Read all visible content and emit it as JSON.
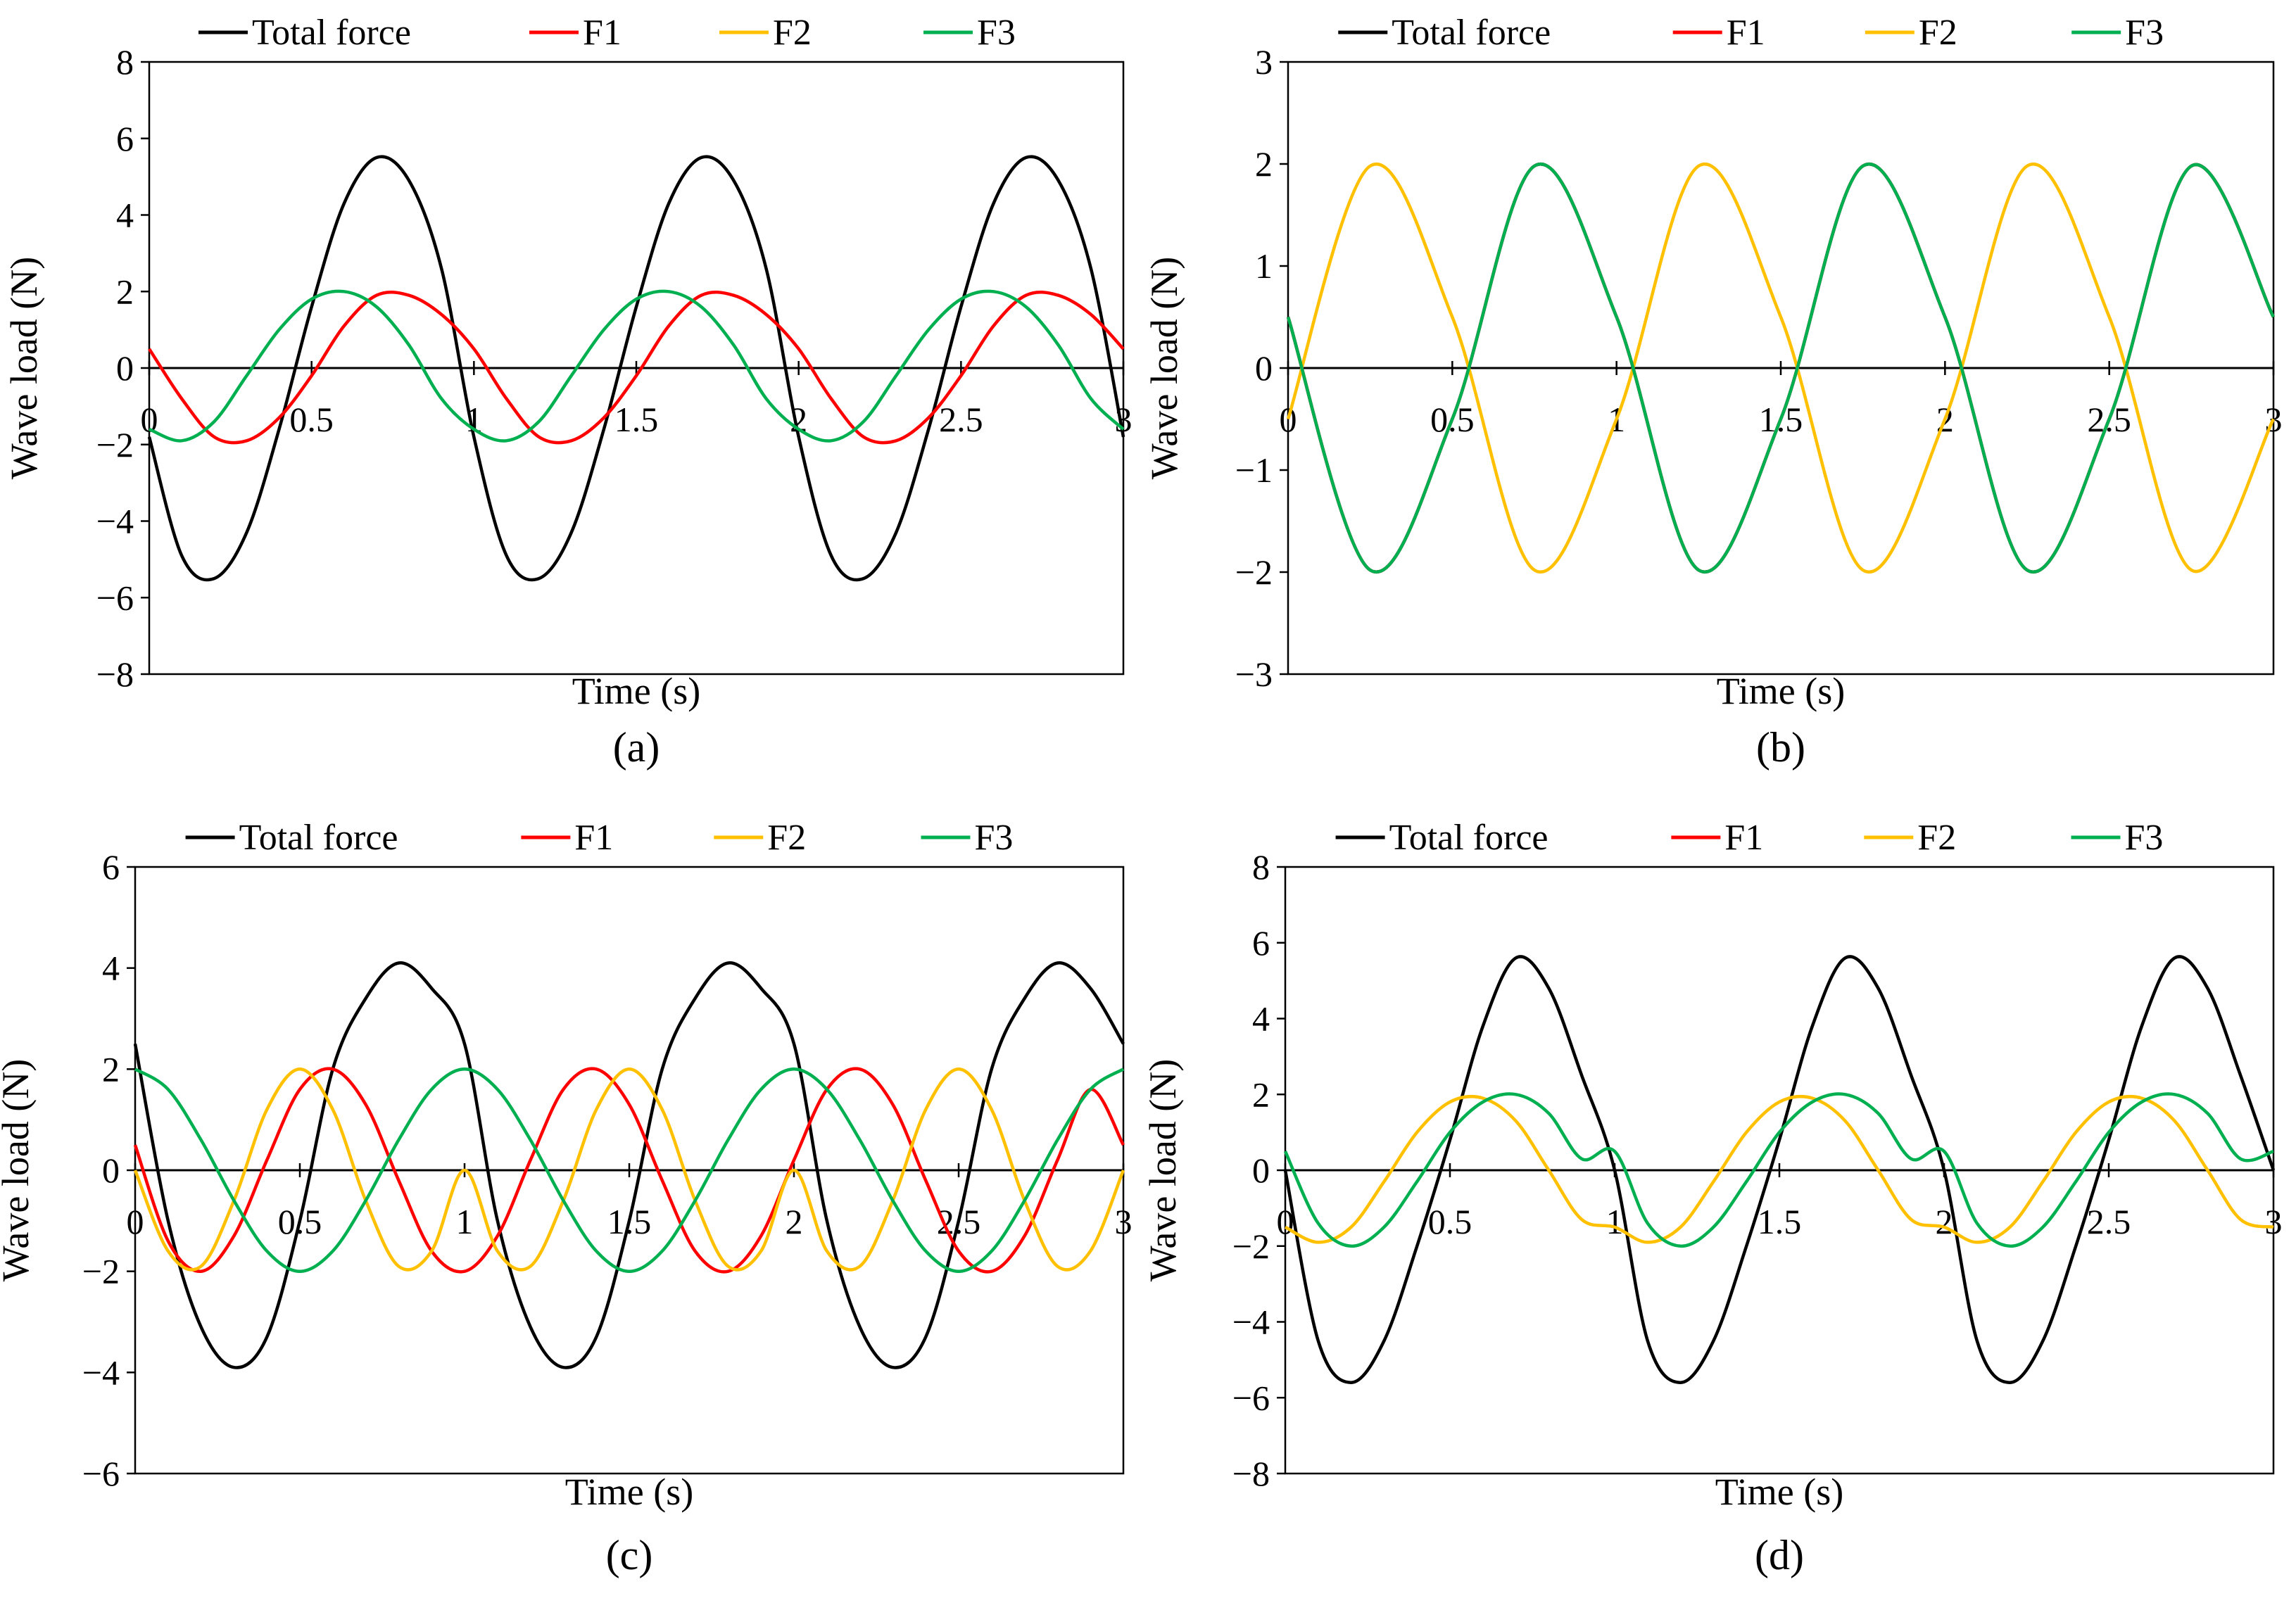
{
  "colors": {
    "total": "#000000",
    "f1": "#ff0000",
    "f2": "#ffc000",
    "f3": "#00b050",
    "axis": "#000000"
  },
  "chart_data": [
    {
      "type": "line",
      "caption": "(a)",
      "xlabel": "Time (s)",
      "ylabel": "Wave load (N)",
      "xlim": [
        0,
        3
      ],
      "ylim": [
        -8,
        8
      ],
      "xticks": [
        0,
        0.5,
        1,
        1.5,
        2,
        2.5,
        3
      ],
      "xtick_labels": [
        "0",
        "0.5",
        "1",
        "1.5",
        "2",
        "2.5",
        "3"
      ],
      "yticks": [
        -8,
        -6,
        -4,
        -2,
        0,
        2,
        4,
        6,
        8
      ],
      "ytick_labels": [
        "−8",
        "−6",
        "−4",
        "−2",
        "0",
        "2",
        "4",
        "6",
        "8"
      ],
      "legend": "top",
      "grid": false,
      "series": [
        {
          "name": "Total force",
          "color_key": "total",
          "x": [
            0,
            0.1,
            0.2,
            0.3,
            0.4,
            0.5,
            0.6,
            0.7,
            0.8,
            0.9,
            1.0,
            1.1,
            1.2,
            1.3,
            1.4,
            1.5,
            1.6,
            1.7,
            1.8,
            1.9,
            2.0,
            2.1,
            2.2,
            2.3,
            2.4,
            2.5,
            2.6,
            2.7,
            2.8,
            2.9,
            3.0
          ],
          "values": [
            -1.8,
            -4.9,
            -5.5,
            -4.3,
            -1.6,
            1.6,
            4.3,
            5.5,
            4.9,
            2.6,
            -1.8,
            -4.9,
            -5.5,
            -4.3,
            -1.6,
            1.6,
            4.3,
            5.5,
            4.9,
            2.6,
            -1.8,
            -4.9,
            -5.5,
            -4.3,
            -1.6,
            1.6,
            4.3,
            5.5,
            4.9,
            2.6,
            -1.8
          ]
        },
        {
          "name": "F1",
          "color_key": "f1",
          "x": [
            0,
            0.1,
            0.2,
            0.3,
            0.4,
            0.5,
            0.6,
            0.7,
            0.8,
            0.9,
            1.0,
            1.1,
            1.2,
            1.3,
            1.4,
            1.5,
            1.6,
            1.7,
            1.8,
            1.9,
            2.0,
            2.1,
            2.2,
            2.3,
            2.4,
            2.5,
            2.6,
            2.7,
            2.8,
            2.9,
            3.0
          ],
          "values": [
            0.5,
            -0.8,
            -1.8,
            -1.9,
            -1.3,
            -0.2,
            1.1,
            1.9,
            1.9,
            1.4,
            0.5,
            -0.8,
            -1.8,
            -1.9,
            -1.3,
            -0.2,
            1.1,
            1.9,
            1.9,
            1.4,
            0.5,
            -0.8,
            -1.8,
            -1.9,
            -1.3,
            -0.2,
            1.1,
            1.9,
            1.9,
            1.4,
            0.5
          ]
        },
        {
          "name": "F2",
          "color_key": "f2",
          "x": [],
          "values": []
        },
        {
          "name": "F3",
          "color_key": "f3",
          "x": [
            0,
            0.1,
            0.2,
            0.3,
            0.4,
            0.5,
            0.6,
            0.7,
            0.8,
            0.9,
            1.0,
            1.1,
            1.2,
            1.3,
            1.4,
            1.5,
            1.6,
            1.7,
            1.8,
            1.9,
            2.0,
            2.1,
            2.2,
            2.3,
            2.4,
            2.5,
            2.6,
            2.7,
            2.8,
            2.9,
            3.0
          ],
          "values": [
            -1.6,
            -1.9,
            -1.4,
            -0.2,
            1.0,
            1.8,
            2.0,
            1.6,
            0.6,
            -0.8,
            -1.6,
            -1.9,
            -1.4,
            -0.2,
            1.0,
            1.8,
            2.0,
            1.6,
            0.6,
            -0.8,
            -1.6,
            -1.9,
            -1.4,
            -0.2,
            1.0,
            1.8,
            2.0,
            1.6,
            0.6,
            -0.8,
            -1.6
          ]
        }
      ]
    },
    {
      "type": "line",
      "caption": "(b)",
      "xlabel": "Time (s)",
      "ylabel": "Wave load (N)",
      "xlim": [
        0,
        3
      ],
      "ylim": [
        -3,
        3
      ],
      "xticks": [
        0,
        0.5,
        1,
        1.5,
        2,
        2.5,
        3
      ],
      "xtick_labels": [
        "0",
        "0.5",
        "1",
        "1.5",
        "2",
        "2.5",
        "3"
      ],
      "yticks": [
        -3,
        -2,
        -1,
        0,
        1,
        2,
        3
      ],
      "ytick_labels": [
        "−3",
        "−2",
        "−1",
        "0",
        "1",
        "2",
        "3"
      ],
      "legend": "top",
      "grid": false,
      "series": [
        {
          "name": "Total force",
          "color_key": "total",
          "x": [
            0,
            0.25,
            0.5,
            0.75,
            1.0,
            1.25,
            1.5,
            1.75,
            2.0,
            2.25,
            2.5,
            2.75,
            3.0
          ],
          "values": [
            0.5,
            -1.98,
            -0.5,
            1.98,
            0.5,
            -1.98,
            -0.5,
            1.98,
            0.5,
            -1.98,
            -0.5,
            1.98,
            0.5
          ]
        },
        {
          "name": "F1",
          "color_key": "f1",
          "x": [
            0,
            0.25,
            0.5,
            0.75,
            1.0,
            1.25,
            1.5,
            1.75,
            2.0,
            2.25,
            2.5,
            2.75,
            3.0
          ],
          "values": [
            0.5,
            -1.98,
            -0.5,
            1.98,
            0.5,
            -1.98,
            -0.5,
            1.98,
            0.5,
            -1.98,
            -0.5,
            1.98,
            0.5
          ]
        },
        {
          "name": "F2",
          "color_key": "f2",
          "x": [
            0,
            0.25,
            0.5,
            0.75,
            1.0,
            1.25,
            1.5,
            1.75,
            2.0,
            2.25,
            2.5,
            2.75,
            3.0
          ],
          "values": [
            -0.5,
            1.98,
            0.5,
            -1.98,
            -0.5,
            1.98,
            0.5,
            -1.98,
            -0.5,
            1.98,
            0.5,
            -1.98,
            -0.5
          ]
        },
        {
          "name": "F3",
          "color_key": "f3",
          "x": [
            0,
            0.25,
            0.5,
            0.75,
            1.0,
            1.25,
            1.5,
            1.75,
            2.0,
            2.25,
            2.5,
            2.75,
            3.0
          ],
          "values": [
            0.5,
            -1.98,
            -0.5,
            1.98,
            0.5,
            -1.98,
            -0.5,
            1.98,
            0.5,
            -1.98,
            -0.5,
            1.98,
            0.5
          ]
        }
      ]
    },
    {
      "type": "line",
      "caption": "(c)",
      "xlabel": "Time (s)",
      "ylabel": "Wave load (N)",
      "xlim": [
        0,
        3
      ],
      "ylim": [
        -6,
        6
      ],
      "xticks": [
        0,
        0.5,
        1,
        1.5,
        2,
        2.5,
        3
      ],
      "xtick_labels": [
        "0",
        "0.5",
        "1",
        "1.5",
        "2",
        "2.5",
        "3"
      ],
      "yticks": [
        -6,
        -4,
        -2,
        0,
        2,
        4,
        6
      ],
      "ytick_labels": [
        "−6",
        "−4",
        "−2",
        "0",
        "2",
        "4",
        "6"
      ],
      "legend": "top",
      "grid": false,
      "series": [
        {
          "name": "Total force",
          "color_key": "total",
          "x": [
            0,
            0.1,
            0.2,
            0.3,
            0.4,
            0.5,
            0.6,
            0.7,
            0.8,
            0.9,
            1.0,
            1.1,
            1.2,
            1.3,
            1.4,
            1.5,
            1.6,
            1.7,
            1.8,
            1.9,
            2.0,
            2.1,
            2.2,
            2.3,
            2.4,
            2.5,
            2.6,
            2.7,
            2.8,
            2.9,
            3.0
          ],
          "values": [
            2.5,
            -1.0,
            -3.1,
            -3.9,
            -3.3,
            -1.0,
            2.0,
            3.4,
            4.1,
            3.6,
            2.5,
            -1.0,
            -3.1,
            -3.9,
            -3.3,
            -1.0,
            2.0,
            3.4,
            4.1,
            3.6,
            2.5,
            -1.0,
            -3.1,
            -3.9,
            -3.3,
            -1.0,
            2.0,
            3.4,
            4.1,
            3.6,
            2.5
          ]
        },
        {
          "name": "F1",
          "color_key": "f1",
          "x": [
            0,
            0.1,
            0.2,
            0.3,
            0.4,
            0.5,
            0.6,
            0.7,
            0.8,
            0.9,
            1.0,
            1.1,
            1.2,
            1.3,
            1.4,
            1.5,
            1.6,
            1.7,
            1.8,
            1.9,
            2.0,
            2.1,
            2.2,
            2.3,
            2.4,
            2.5,
            2.6,
            2.7,
            2.8,
            2.9,
            3.0
          ],
          "values": [
            0.5,
            -1.4,
            -2.0,
            -1.3,
            0.2,
            1.6,
            2.0,
            1.3,
            -0.2,
            -1.6,
            -2.0,
            -1.3,
            0.2,
            1.6,
            2.0,
            1.3,
            -0.2,
            -1.6,
            -2.0,
            -1.3,
            0.2,
            1.6,
            2.0,
            1.3,
            -0.2,
            -1.6,
            -2.0,
            -1.3,
            0.2,
            1.6,
            0.5
          ]
        },
        {
          "name": "F2",
          "color_key": "f2",
          "x": [
            0,
            0.1,
            0.2,
            0.3,
            0.4,
            0.5,
            0.6,
            0.7,
            0.8,
            0.9,
            1.0,
            1.1,
            1.2,
            1.3,
            1.4,
            1.5,
            1.6,
            1.7,
            1.8,
            1.9,
            2.0,
            2.1,
            2.2,
            2.3,
            2.4,
            2.5,
            2.6,
            2.7,
            2.8,
            2.9,
            3.0
          ],
          "values": [
            0.0,
            -1.6,
            -1.9,
            -0.6,
            1.2,
            2.0,
            1.2,
            -0.6,
            -1.9,
            -1.6,
            0.0,
            -1.6,
            -1.9,
            -0.6,
            1.2,
            2.0,
            1.2,
            -0.6,
            -1.9,
            -1.6,
            0.0,
            -1.6,
            -1.9,
            -0.6,
            1.2,
            2.0,
            1.2,
            -0.6,
            -1.9,
            -1.6,
            0.0
          ]
        },
        {
          "name": "F3",
          "color_key": "f3",
          "x": [
            0,
            0.1,
            0.2,
            0.3,
            0.4,
            0.5,
            0.6,
            0.7,
            0.8,
            0.9,
            1.0,
            1.1,
            1.2,
            1.3,
            1.4,
            1.5,
            1.6,
            1.7,
            1.8,
            1.9,
            2.0,
            2.1,
            2.2,
            2.3,
            2.4,
            2.5,
            2.6,
            2.7,
            2.8,
            2.9,
            3.0
          ],
          "values": [
            2.0,
            1.6,
            0.6,
            -0.6,
            -1.6,
            -2.0,
            -1.6,
            -0.6,
            0.6,
            1.6,
            2.0,
            1.6,
            0.6,
            -0.6,
            -1.6,
            -2.0,
            -1.6,
            -0.6,
            0.6,
            1.6,
            2.0,
            1.6,
            0.6,
            -0.6,
            -1.6,
            -2.0,
            -1.6,
            -0.6,
            0.6,
            1.6,
            2.0
          ]
        }
      ]
    },
    {
      "type": "line",
      "caption": "(d)",
      "xlabel": "Time (s)",
      "ylabel": "Wave load (N)",
      "xlim": [
        0,
        3
      ],
      "ylim": [
        -8,
        8
      ],
      "xticks": [
        0,
        0.5,
        1,
        1.5,
        2,
        2.5,
        3
      ],
      "xtick_labels": [
        "0",
        "0.5",
        "1",
        "1.5",
        "2",
        "2.5",
        "3"
      ],
      "yticks": [
        -8,
        -6,
        -4,
        -2,
        0,
        2,
        4,
        6,
        8
      ],
      "ytick_labels": [
        "−8",
        "−6",
        "−4",
        "−2",
        "0",
        "2",
        "4",
        "6",
        "8"
      ],
      "legend": "top",
      "grid": false,
      "series": [
        {
          "name": "Total force",
          "color_key": "total",
          "x": [
            0,
            0.1,
            0.2,
            0.3,
            0.4,
            0.5,
            0.6,
            0.7,
            0.8,
            0.9,
            1.0,
            1.1,
            1.2,
            1.3,
            1.4,
            1.5,
            1.6,
            1.7,
            1.8,
            1.9,
            2.0,
            2.1,
            2.2,
            2.3,
            2.4,
            2.5,
            2.6,
            2.7,
            2.8,
            2.9,
            3.0
          ],
          "values": [
            0.0,
            -4.5,
            -5.6,
            -4.5,
            -2.0,
            0.8,
            3.8,
            5.6,
            4.8,
            2.5,
            0.0,
            -4.5,
            -5.6,
            -4.5,
            -2.0,
            0.8,
            3.8,
            5.6,
            4.8,
            2.5,
            0.0,
            -4.5,
            -5.6,
            -4.5,
            -2.0,
            0.8,
            3.8,
            5.6,
            4.8,
            2.5,
            0.0
          ]
        },
        {
          "name": "F1",
          "color_key": "f1",
          "x": [],
          "values": []
        },
        {
          "name": "F2",
          "color_key": "f2",
          "x": [
            0,
            0.1,
            0.2,
            0.3,
            0.4,
            0.5,
            0.6,
            0.7,
            0.8,
            0.9,
            1.0,
            1.1,
            1.2,
            1.3,
            1.4,
            1.5,
            1.6,
            1.7,
            1.8,
            1.9,
            2.0,
            2.1,
            2.2,
            2.3,
            2.4,
            2.5,
            2.6,
            2.7,
            2.8,
            2.9,
            3.0
          ],
          "values": [
            -1.5,
            -1.9,
            -1.5,
            -0.3,
            1.0,
            1.8,
            1.9,
            1.3,
            0.0,
            -1.3,
            -1.5,
            -1.9,
            -1.5,
            -0.3,
            1.0,
            1.8,
            1.9,
            1.3,
            0.0,
            -1.3,
            -1.5,
            -1.9,
            -1.5,
            -0.3,
            1.0,
            1.8,
            1.9,
            1.3,
            0.0,
            -1.3,
            -1.5
          ]
        },
        {
          "name": "F3",
          "color_key": "f3",
          "x": [
            0,
            0.1,
            0.2,
            0.3,
            0.4,
            0.5,
            0.6,
            0.7,
            0.8,
            0.9,
            1.0,
            1.1,
            1.2,
            1.3,
            1.4,
            1.5,
            1.6,
            1.7,
            1.8,
            1.9,
            2.0,
            2.1,
            2.2,
            2.3,
            2.4,
            2.5,
            2.6,
            2.7,
            2.8,
            2.9,
            3.0
          ],
          "values": [
            0.5,
            -1.4,
            -2.0,
            -1.5,
            -0.3,
            1.0,
            1.8,
            2.0,
            1.5,
            0.3,
            0.5,
            -1.4,
            -2.0,
            -1.5,
            -0.3,
            1.0,
            1.8,
            2.0,
            1.5,
            0.3,
            0.5,
            -1.4,
            -2.0,
            -1.5,
            -0.3,
            1.0,
            1.8,
            2.0,
            1.5,
            0.3,
            0.5
          ]
        }
      ]
    }
  ]
}
